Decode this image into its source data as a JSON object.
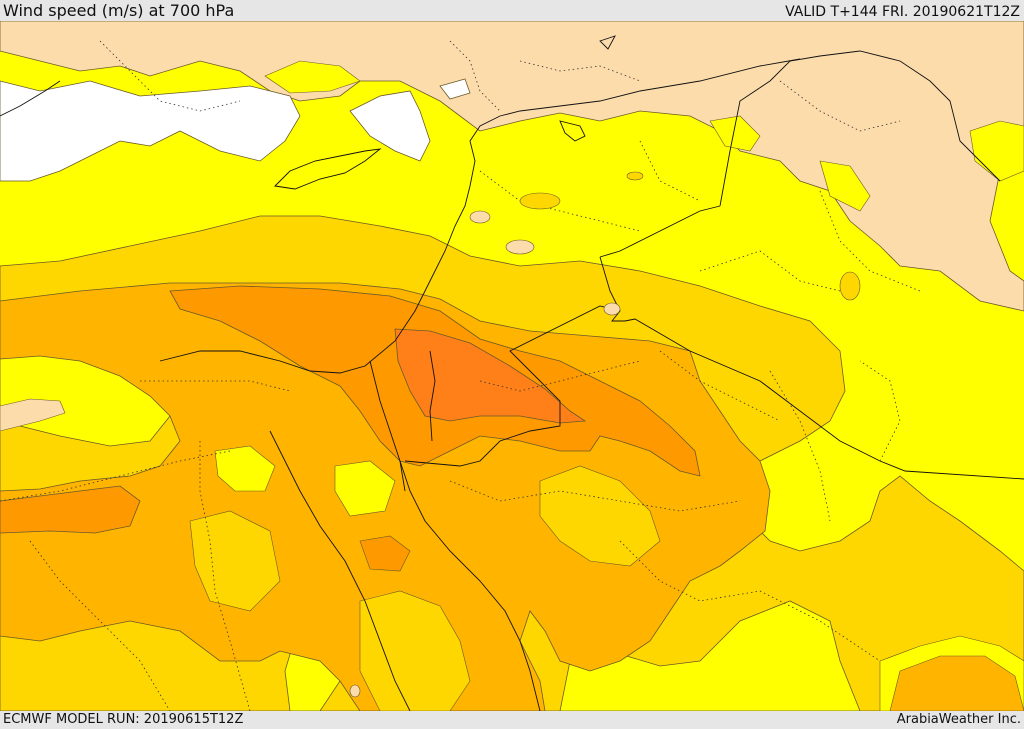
{
  "header": {
    "title": "Wind speed (m/s) at 700 hPa",
    "valid": "VALID T+144 FRI. 20190621T12Z"
  },
  "footer": {
    "model_run": "ECMWF MODEL RUN: 20190615T12Z",
    "credit": "ArabiaWeather Inc."
  },
  "colors": {
    "sea_calm": "#ffffff",
    "land_low": "#fcdcab",
    "band_1": "#ffff00",
    "band_2": "#ffd700",
    "band_3": "#ffb400",
    "band_4": "#ff9900",
    "band_5": "#ff7f19",
    "contour": "#6a5a2a",
    "border": "#111111"
  }
}
